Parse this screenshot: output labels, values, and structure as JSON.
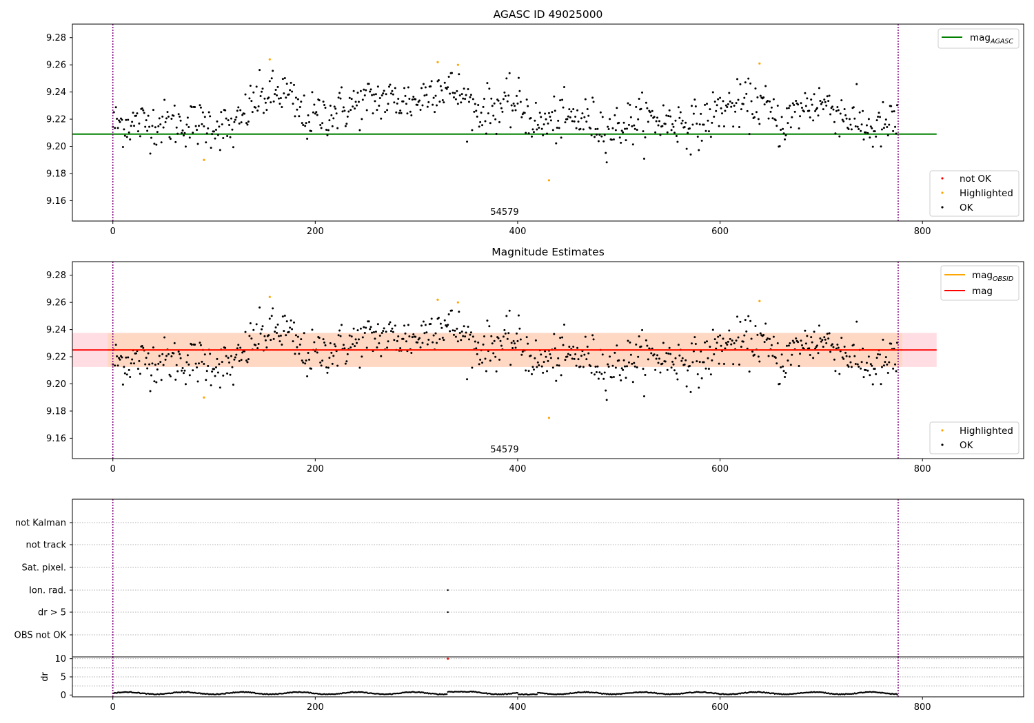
{
  "colors": {
    "ok": "#000000",
    "highlighted": "#ffa500",
    "not_ok": "#ff0000",
    "agasc_line": "#008000",
    "mag_line": "#ff0000",
    "obsid_line": "#ffa500",
    "band_outer": "#ffdde3",
    "band_inner": "#ffd8c4",
    "vline": "#800080"
  },
  "chart_data": [
    {
      "id": "agasc",
      "type": "scatter",
      "title": "AGASC ID 49025000",
      "annotation": "54579",
      "xlim": [
        -40,
        900
      ],
      "ylim": [
        9.145,
        9.29
      ],
      "xticks": [
        0,
        200,
        400,
        600,
        800
      ],
      "xtick_labels": [
        "0",
        "200",
        "400",
        "600",
        "800"
      ],
      "yticks": [
        9.16,
        9.18,
        9.2,
        9.22,
        9.24,
        9.26,
        9.28
      ],
      "ytick_labels": [
        "9.16",
        "9.18",
        "9.20",
        "9.22",
        "9.24",
        "9.26",
        "9.28"
      ],
      "vlines": [
        0,
        776
      ],
      "hline": {
        "name": "mag",
        "subscript": "AGASC",
        "value": 9.209,
        "x_range": [
          -40,
          814
        ]
      },
      "highlighted_points": [
        [
          90,
          9.19
        ],
        [
          155,
          9.264
        ],
        [
          321,
          9.262
        ],
        [
          341,
          9.26
        ],
        [
          431,
          9.175
        ],
        [
          639,
          9.261
        ]
      ],
      "legend_lines": [
        {
          "name": "mag",
          "subscript": "AGASC"
        }
      ],
      "legend_points": [
        "not OK",
        "Highlighted",
        "OK"
      ],
      "series_note": "OK series: 776 per-sample magnitudes around 9.20–9.26"
    },
    {
      "id": "mag",
      "type": "scatter",
      "title": "Magnitude Estimates",
      "annotation": "54579",
      "xlim": [
        -40,
        900
      ],
      "ylim": [
        9.145,
        9.29
      ],
      "xticks": [
        0,
        200,
        400,
        600,
        800
      ],
      "xtick_labels": [
        "0",
        "200",
        "400",
        "600",
        "800"
      ],
      "yticks": [
        9.16,
        9.18,
        9.2,
        9.22,
        9.24,
        9.26,
        9.28
      ],
      "ytick_labels": [
        "9.16",
        "9.18",
        "9.20",
        "9.22",
        "9.24",
        "9.26",
        "9.28"
      ],
      "vlines": [
        0,
        776
      ],
      "hline": {
        "name": "mag",
        "value": 9.225,
        "x_range": [
          -40,
          814
        ]
      },
      "band_outer": [
        9.2125,
        9.2375
      ],
      "band_inner": [
        9.2125,
        9.2375
      ],
      "band_inner_x": [
        -5,
        780
      ],
      "highlighted_points": [
        [
          90,
          9.19
        ],
        [
          155,
          9.264
        ],
        [
          321,
          9.262
        ],
        [
          341,
          9.26
        ],
        [
          431,
          9.175
        ],
        [
          639,
          9.261
        ]
      ],
      "legend_lines": [
        {
          "name": "mag",
          "subscript": "OBSID"
        },
        {
          "name": "mag",
          "subscript": ""
        }
      ],
      "legend_points": [
        "Highlighted",
        "OK"
      ]
    },
    {
      "id": "flags",
      "type": "scatter",
      "categories": [
        "not Kalman",
        "not track",
        "Sat. pixel.",
        "Ion. rad.",
        "dr > 5",
        "OBS not OK"
      ],
      "points": [
        {
          "x": 331,
          "category": "Ion. rad."
        },
        {
          "x": 331,
          "category": "dr > 5"
        }
      ],
      "vlines": [
        0,
        776
      ]
    },
    {
      "id": "dr",
      "type": "scatter",
      "ylabel": "dr",
      "xlim": [
        -40,
        900
      ],
      "ylim": [
        -0.5,
        10.5
      ],
      "xticks": [
        0,
        200,
        400,
        600,
        800
      ],
      "xtick_labels": [
        "0",
        "200",
        "400",
        "600",
        "800"
      ],
      "yticks": [
        0,
        5,
        10
      ],
      "ytick_labels": [
        "0",
        "5",
        "10"
      ],
      "vlines": [
        0,
        776
      ],
      "not_ok_points": [
        [
          331,
          10
        ]
      ],
      "series_note": "dr values per sample, roughly 0.1–0.9"
    }
  ]
}
